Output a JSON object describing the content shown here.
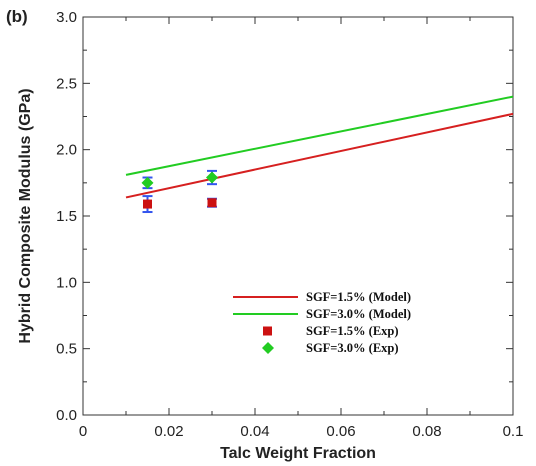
{
  "chart_data": {
    "type": "line",
    "panel_label": "(b)",
    "xlabel": "Talc Weight Fraction",
    "ylabel": "Hybrid Composite Modulus (GPa)",
    "xlim": [
      0,
      0.1
    ],
    "ylim": [
      0,
      3.0
    ],
    "x_ticks": [
      0,
      0.02,
      0.04,
      0.06,
      0.08,
      0.1
    ],
    "x_tick_labels": [
      "0",
      "0.02",
      "0.04",
      "0.06",
      "0.08",
      "0.1"
    ],
    "y_ticks": [
      0,
      0.5,
      1.0,
      1.5,
      2.0,
      2.5,
      3.0
    ],
    "y_tick_labels": [
      "0.0",
      "0.5",
      "1.0",
      "1.5",
      "2.0",
      "2.5",
      "3.0"
    ],
    "grid": false,
    "legend_position": "lower-right",
    "series": [
      {
        "name": "SGF=1.5% (Model)",
        "kind": "line",
        "color": "#d62020",
        "x": [
          0.01,
          0.1
        ],
        "y": [
          1.64,
          2.27
        ]
      },
      {
        "name": "SGF=3.0% (Model)",
        "kind": "line",
        "color": "#22cc22",
        "x": [
          0.01,
          0.1
        ],
        "y": [
          1.81,
          2.4
        ]
      },
      {
        "name": "SGF=1.5% (Exp)",
        "kind": "scatter",
        "marker": "square",
        "color": "#cc1111",
        "x": [
          0.015,
          0.03
        ],
        "y": [
          1.59,
          1.6
        ],
        "yerr": [
          0.06,
          0.03
        ]
      },
      {
        "name": "SGF=3.0% (Exp)",
        "kind": "scatter",
        "marker": "diamond",
        "color": "#22cc22",
        "x": [
          0.015,
          0.03
        ],
        "y": [
          1.75,
          1.79
        ],
        "yerr": [
          0.04,
          0.05
        ]
      }
    ],
    "errorbar_color": "#3355ee"
  }
}
